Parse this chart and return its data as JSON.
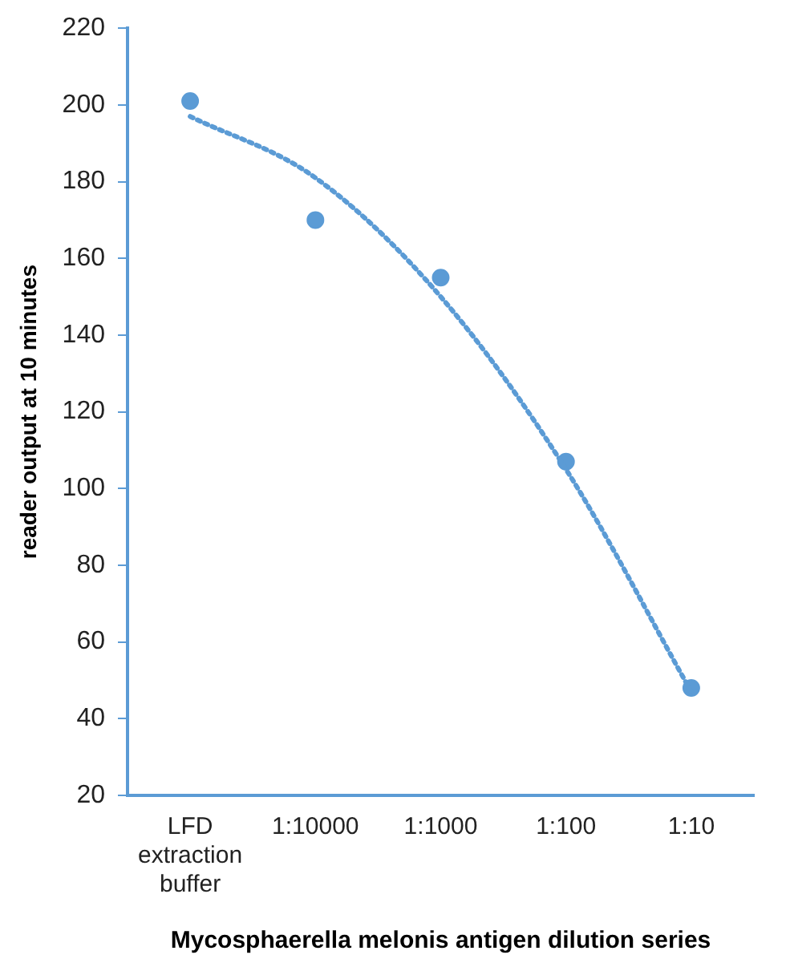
{
  "chart_data": {
    "type": "scatter",
    "xlabel": "Mycosphaerella melonis antigen dilution series",
    "ylabel": "reader output at 10 minutes",
    "categories": [
      "LFD extraction buffer",
      "1:10000",
      "1:1000",
      "1:100",
      "1:10"
    ],
    "series": [
      {
        "type": "scatter",
        "color": "#5b9bd5",
        "marker": "circle",
        "values": [
          201,
          170,
          155,
          107,
          48
        ]
      },
      {
        "type": "line",
        "color": "#5b9bd5",
        "marker": "none",
        "line_style": "dotted",
        "values": [
          197,
          181,
          150,
          105,
          47
        ]
      }
    ],
    "ylim": [
      20,
      220
    ],
    "yticks": [
      20,
      40,
      60,
      80,
      100,
      120,
      140,
      160,
      180,
      200,
      220
    ],
    "grid": false,
    "legend": false
  }
}
